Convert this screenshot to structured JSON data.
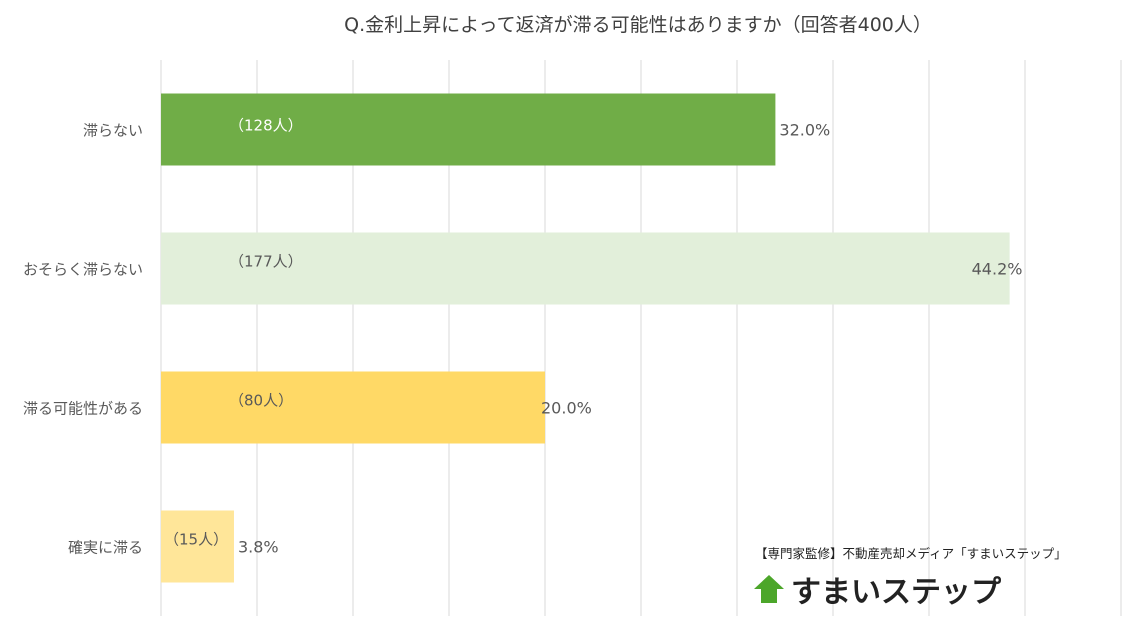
{
  "chart_data": {
    "type": "bar",
    "orientation": "horizontal",
    "title": "Q.金利上昇によって返済が滞る可能性はありますか（回答者400人）",
    "categories": [
      "滞らない",
      "おそらく滞らない",
      "滞る可能性がある",
      "確実に滞る"
    ],
    "values": [
      32.0,
      44.2,
      20.0,
      3.8
    ],
    "value_labels": [
      "32.0%",
      "44.2%",
      "20.0%",
      "3.8%"
    ],
    "count_labels": [
      "（128人）",
      "（177人）",
      "（80人）",
      "（15人）"
    ],
    "colors": [
      "#70AD47",
      "#E2EFDA",
      "#FFD966",
      "#FFE699"
    ],
    "xlim": [
      0,
      50
    ],
    "grid": true,
    "xlabel": "",
    "ylabel": ""
  },
  "credit": "【専門家監修】不動産売却メディア「すまいステップ」",
  "logo_text": "すまいステップ",
  "logo_color": "#4CA62A"
}
